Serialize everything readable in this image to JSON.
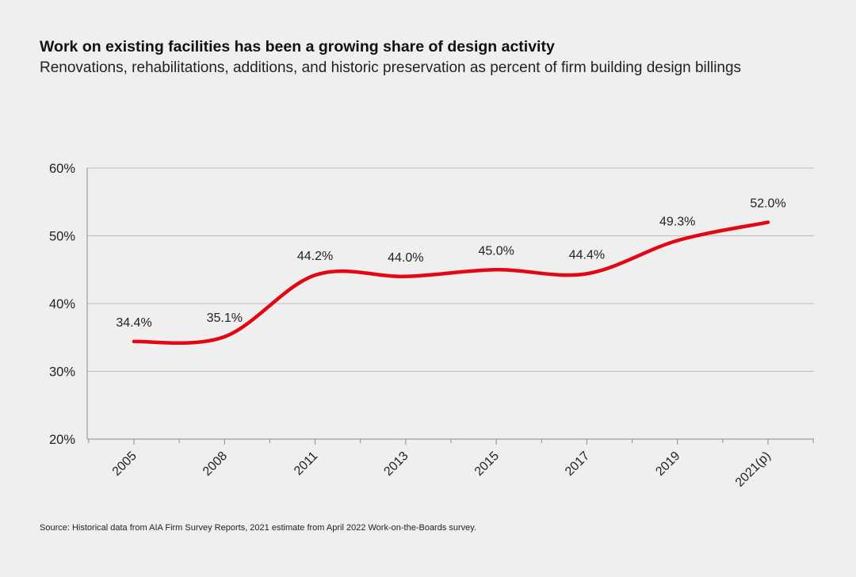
{
  "title": "Work on existing facilities has been a growing share of design activity",
  "subtitle": "Renovations, rehabilitations, additions, and historic preservation as percent of firm building design billings",
  "source": "Source: Historical data from AIA Firm Survey Reports, 2021 estimate from April 2022 Work-on-the-Boards survey.",
  "colors": {
    "line": "#e30613",
    "grid": "#bdbdbd",
    "axis": "#8a8a8a",
    "background": "#efefef"
  },
  "chart_data": {
    "type": "line",
    "title": "Work on existing facilities has been a growing share of design activity",
    "subtitle": "Renovations, rehabilitations, additions, and historic preservation as percent of firm building design billings",
    "xlabel": "",
    "ylabel": "",
    "categories": [
      "2005",
      "2008",
      "2011",
      "2013",
      "2015",
      "2017",
      "2019",
      "2021(p)"
    ],
    "series": [
      {
        "name": "Percent of firm building design billings",
        "values": [
          34.4,
          35.1,
          44.2,
          44.0,
          45.0,
          44.4,
          49.3,
          52.0
        ]
      }
    ],
    "data_labels": [
      "34.4%",
      "35.1%",
      "44.2%",
      "44.0%",
      "45.0%",
      "44.4%",
      "49.3%",
      "52.0%"
    ],
    "ylim": [
      20,
      60
    ],
    "yticks": [
      20,
      30,
      40,
      50,
      60
    ],
    "ytick_labels": [
      "20%",
      "30%",
      "40%",
      "50%",
      "60%"
    ],
    "grid": true,
    "legend": "none"
  }
}
